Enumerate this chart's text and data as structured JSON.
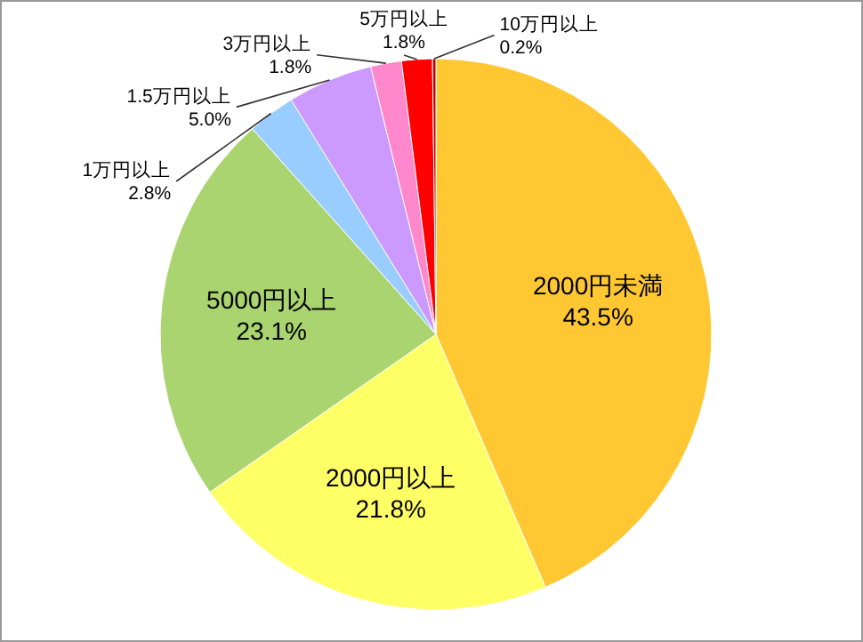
{
  "chart_data": {
    "type": "pie",
    "categories": [
      "2000円未満",
      "2000円以上",
      "5000円以上",
      "1万円以上",
      "1.5万円以上",
      "3万円以上",
      "5万円以上",
      "10万円以上"
    ],
    "values": [
      43.5,
      21.8,
      23.1,
      2.8,
      5.0,
      1.8,
      1.8,
      0.2
    ],
    "value_labels": [
      "43.5%",
      "21.8%",
      "23.1%",
      "2.8%",
      "5.0%",
      "1.8%",
      "1.8%",
      "0.2%"
    ],
    "colors": [
      "#ffc832",
      "#ffff66",
      "#a9d46f",
      "#99ccff",
      "#cc99ff",
      "#ff88cc",
      "#ff0000",
      "#c00000"
    ]
  }
}
